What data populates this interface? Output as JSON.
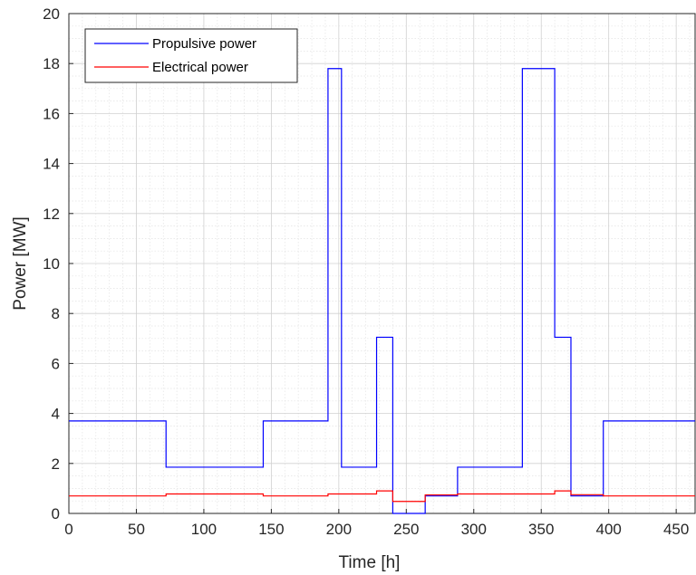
{
  "chart_data": {
    "type": "line",
    "xlabel": "Time [h]",
    "ylabel": "Power [MW]",
    "xlim": [
      0,
      464
    ],
    "ylim": [
      0,
      20
    ],
    "xticks": [
      0,
      50,
      100,
      150,
      200,
      250,
      300,
      350,
      400,
      450
    ],
    "yticks": [
      0,
      2,
      4,
      6,
      8,
      10,
      12,
      14,
      16,
      18,
      20
    ],
    "x_tick_labels": [
      "0",
      "50",
      "100",
      "150",
      "200",
      "250",
      "300",
      "350",
      "400",
      "450"
    ],
    "y_tick_labels": [
      "0",
      "2",
      "4",
      "6",
      "8",
      "10",
      "12",
      "14",
      "16",
      "18",
      "20"
    ],
    "grid": true,
    "minor_grid": true,
    "legend_position": "top-left",
    "series": [
      {
        "name": "Propulsive power",
        "color": "#0000ff",
        "step": true,
        "x": [
          0,
          72,
          144,
          192,
          202,
          228,
          240,
          264,
          288,
          336,
          360,
          372,
          396,
          464
        ],
        "y": [
          3.7,
          1.85,
          3.7,
          17.8,
          1.85,
          7.05,
          0.0,
          0.7,
          1.85,
          17.8,
          7.05,
          0.7,
          3.7,
          3.7
        ]
      },
      {
        "name": "Electrical power",
        "color": "#ff0000",
        "step": true,
        "x": [
          0,
          72,
          144,
          192,
          228,
          240,
          264,
          288,
          336,
          360,
          372,
          396,
          464
        ],
        "y": [
          0.7,
          0.78,
          0.7,
          0.78,
          0.9,
          0.48,
          0.74,
          0.78,
          0.78,
          0.9,
          0.75,
          0.7,
          0.7
        ]
      }
    ]
  }
}
